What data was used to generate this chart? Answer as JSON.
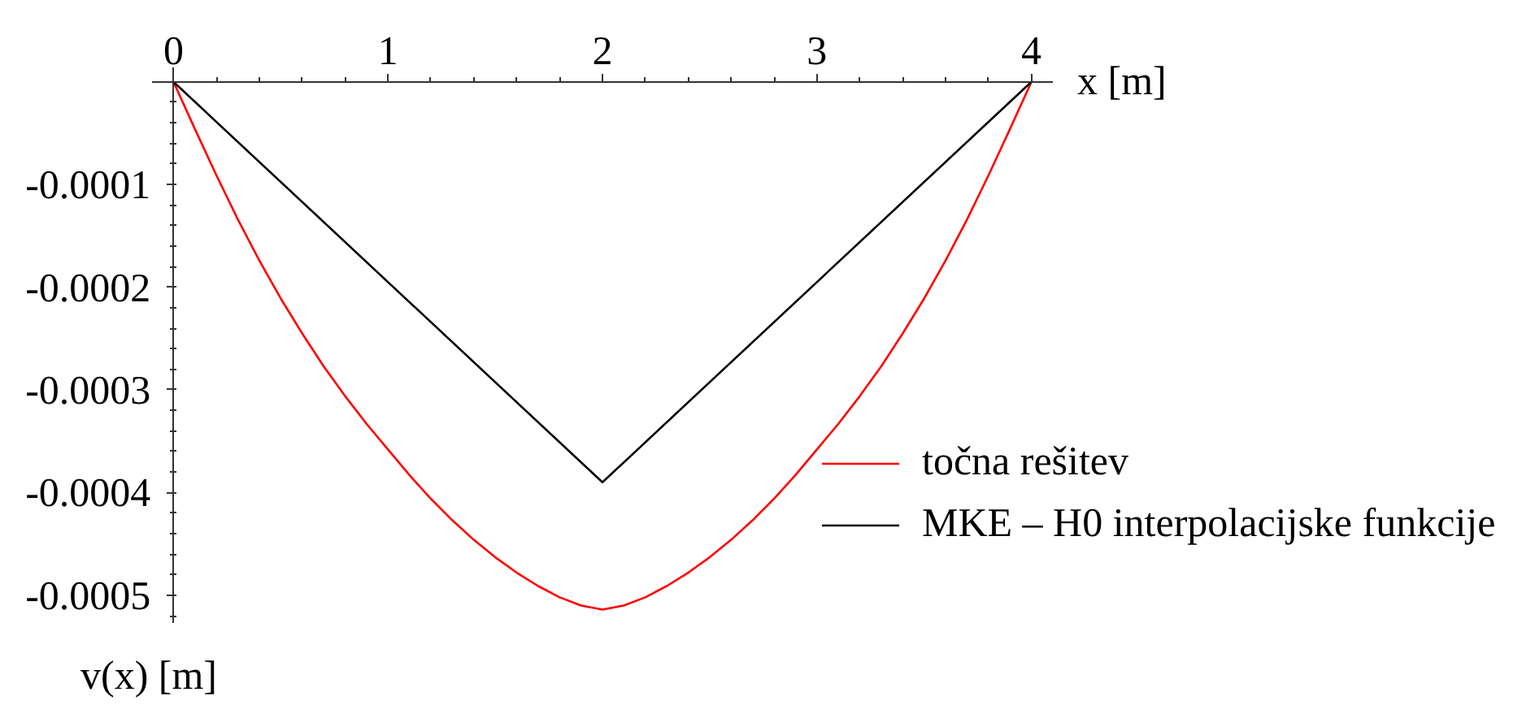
{
  "chart_data": {
    "type": "line",
    "xlabel": "x [m]",
    "ylabel": "v(x) [m]",
    "legend": "bottom right",
    "xlim": [
      -0.1,
      4.1
    ],
    "ylim": [
      -0.000527,
      1.4e-05
    ],
    "xticks": [
      0,
      {
        "value": 0.2,
        "label": null
      },
      {
        "value": 0.4,
        "label": null
      },
      {
        "value": 0.6,
        "label": null
      },
      {
        "value": 0.8,
        "label": null
      },
      1,
      {
        "value": 1.2,
        "label": null
      },
      {
        "value": 1.4,
        "label": null
      },
      {
        "value": 1.6,
        "label": null
      },
      {
        "value": 1.8,
        "label": null
      },
      2,
      {
        "value": 2.2,
        "label": null
      },
      {
        "value": 2.4,
        "label": null
      },
      {
        "value": 2.6,
        "label": null
      },
      {
        "value": 2.8,
        "label": null
      },
      3,
      {
        "value": 3.2,
        "label": null
      },
      {
        "value": 3.4,
        "label": null
      },
      {
        "value": 3.6,
        "label": null
      },
      {
        "value": 3.8,
        "label": null
      },
      4
    ],
    "yticks": [
      {
        "value": -2e-05,
        "label": null
      },
      {
        "value": -4e-05,
        "label": null
      },
      {
        "value": -6e-05,
        "label": null
      },
      {
        "value": -8e-05,
        "label": null
      },
      -0.0001,
      {
        "value": -0.00012,
        "label": null
      },
      {
        "value": -0.00014,
        "label": null
      },
      {
        "value": -0.00016,
        "label": null
      },
      {
        "value": -0.00018,
        "label": null
      },
      -0.0002,
      {
        "value": -0.00022,
        "label": null
      },
      {
        "value": -0.00024,
        "label": null
      },
      {
        "value": -0.00026,
        "label": null
      },
      {
        "value": -0.00028,
        "label": null
      },
      -0.0003,
      {
        "value": -0.00032,
        "label": null
      },
      {
        "value": -0.00034,
        "label": null
      },
      {
        "value": -0.00036,
        "label": null
      },
      {
        "value": -0.00038,
        "label": null
      },
      -0.0004,
      {
        "value": -0.00042,
        "label": null
      },
      {
        "value": -0.00044,
        "label": null
      },
      {
        "value": -0.00046,
        "label": null
      },
      {
        "value": -0.00048,
        "label": null
      },
      -0.0005,
      {
        "value": -0.00052,
        "label": null
      }
    ],
    "series": [
      {
        "name": "točna rešitev",
        "color": "#ff0000",
        "x": [
          0,
          0.1,
          0.2,
          0.3,
          0.4,
          0.5,
          0.6,
          0.7,
          0.8,
          0.9,
          1.0,
          1.1,
          1.2,
          1.3,
          1.4,
          1.5,
          1.6,
          1.7,
          1.8,
          1.9,
          2.0,
          2.1,
          2.2,
          2.3,
          2.4,
          2.5,
          2.6,
          2.7,
          2.8,
          2.9,
          3.0,
          3.1,
          3.2,
          3.3,
          3.4,
          3.5,
          3.6,
          3.7,
          3.8,
          3.9,
          4.0
        ],
        "values": [
          0,
          -4.6e-05,
          -9.1e-05,
          -0.000134,
          -0.000174,
          -0.000211,
          -0.000245,
          -0.000277,
          -0.000306,
          -0.000333,
          -0.000358,
          -0.000383,
          -0.000406,
          -0.000427,
          -0.000446,
          -0.000463,
          -0.000478,
          -0.000491,
          -0.000502,
          -0.00051,
          -0.000514,
          -0.00051,
          -0.000502,
          -0.000491,
          -0.000478,
          -0.000463,
          -0.000446,
          -0.000427,
          -0.000406,
          -0.000383,
          -0.000358,
          -0.000333,
          -0.000306,
          -0.000277,
          -0.000245,
          -0.000211,
          -0.000174,
          -0.000134,
          -9.1e-05,
          -4.6e-05,
          0
        ]
      },
      {
        "name": "MKE – H0 interpolacijske funkcije",
        "color": "#000000",
        "x": [
          0,
          2,
          4
        ],
        "values": [
          0,
          -0.00039,
          0
        ]
      }
    ]
  }
}
